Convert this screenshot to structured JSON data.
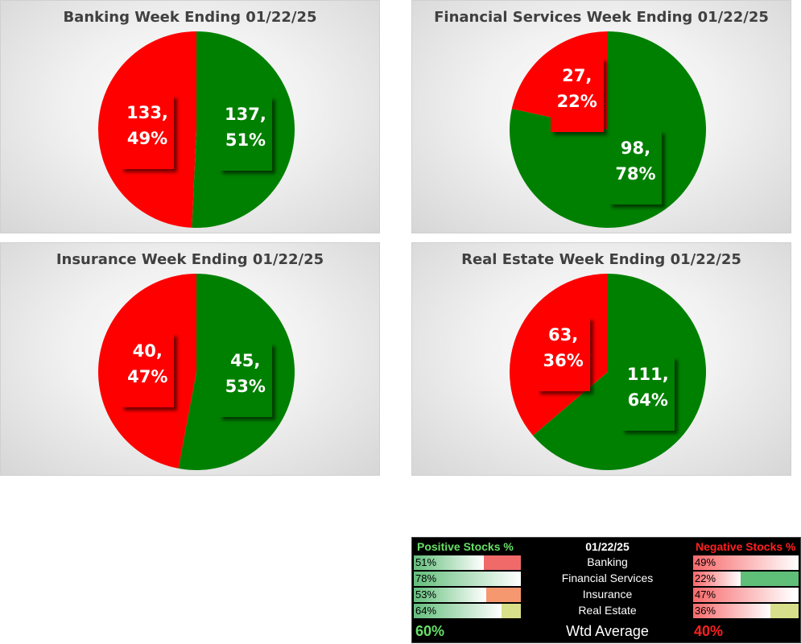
{
  "colors": {
    "positive": "#008000",
    "negative": "#ff0000"
  },
  "chart_data": [
    {
      "type": "pie",
      "title": "Banking Week Ending 01/22/25",
      "categories": [
        "Positive",
        "Negative"
      ],
      "values": [
        137,
        133
      ],
      "labels": [
        {
          "count": "137,",
          "pct": "51%"
        },
        {
          "count": "133,",
          "pct": "49%"
        }
      ]
    },
    {
      "type": "pie",
      "title": "Financial Services Week Ending 01/22/25",
      "categories": [
        "Positive",
        "Negative"
      ],
      "values": [
        98,
        27
      ],
      "labels": [
        {
          "count": "98,",
          "pct": "78%"
        },
        {
          "count": "27,",
          "pct": "22%"
        }
      ]
    },
    {
      "type": "pie",
      "title": "Insurance Week Ending 01/22/25",
      "categories": [
        "Positive",
        "Negative"
      ],
      "values": [
        45,
        40
      ],
      "labels": [
        {
          "count": "45,",
          "pct": "53%"
        },
        {
          "count": "40,",
          "pct": "47%"
        }
      ]
    },
    {
      "type": "pie",
      "title": "Real Estate Week Ending 01/22/25",
      "categories": [
        "Positive",
        "Negative"
      ],
      "values": [
        111,
        63
      ],
      "labels": [
        {
          "count": "111,",
          "pct": "64%"
        },
        {
          "count": "63,",
          "pct": "36%"
        }
      ]
    }
  ],
  "summary": {
    "header_positive": "Positive Stocks %",
    "header_date": "01/22/25",
    "header_negative": "Negative Stocks %",
    "rows": [
      {
        "sector": "Banking",
        "pos": "51%",
        "neg": "49%",
        "pos_value": 0.51,
        "neg_value": 0.49
      },
      {
        "sector": "Financial Services",
        "pos": "78%",
        "neg": "22%",
        "pos_value": 0.78,
        "neg_value": 0.22
      },
      {
        "sector": "Insurance",
        "pos": "53%",
        "neg": "47%",
        "pos_value": 0.53,
        "neg_value": 0.47
      },
      {
        "sector": "Real Estate",
        "pos": "64%",
        "neg": "36%",
        "pos_value": 0.64,
        "neg_value": 0.36
      }
    ],
    "footer_label": "Wtd Average",
    "footer_pos": "60%",
    "footer_neg": "40%"
  }
}
